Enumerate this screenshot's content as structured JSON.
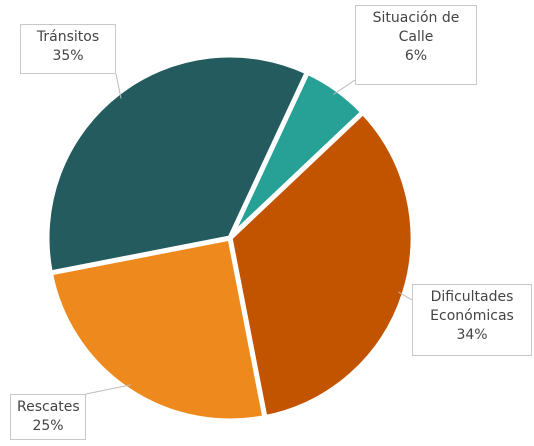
{
  "chart_data": {
    "type": "pie",
    "categories": [
      "Situación de Calle",
      "Dificultades Económicas",
      "Rescates",
      "Tránsitos"
    ],
    "values": [
      6,
      34,
      25,
      35
    ],
    "value_labels": [
      "6%",
      "34%",
      "25%",
      "35%"
    ],
    "colors": [
      "#27a096",
      "#c25400",
      "#ee8a1d",
      "#235b5e"
    ]
  }
}
